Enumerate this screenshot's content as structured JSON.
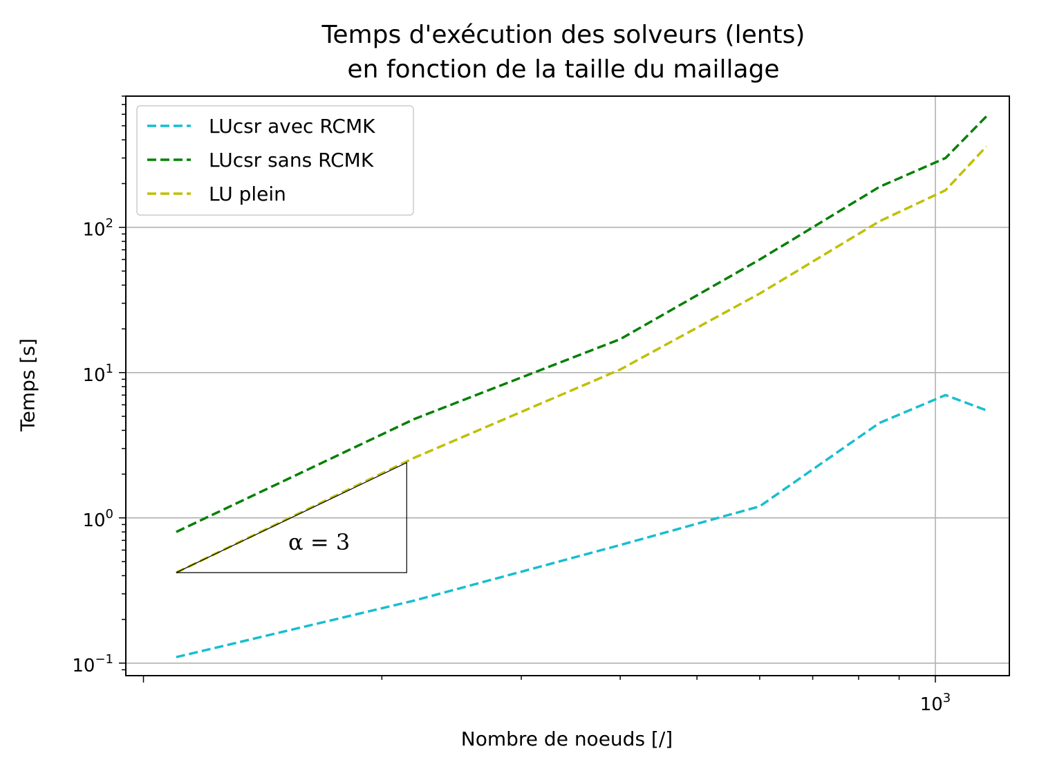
{
  "chart_data": {
    "type": "line",
    "title_line1": "Temps d'exécution des solveurs (lents)",
    "title_line2": "en fonction de la taille du maillage",
    "xlabel": "Nombre de noeuds [/]",
    "ylabel": "Temps [s]",
    "xscale": "log",
    "yscale": "log",
    "xlim": [
      95,
      1240
    ],
    "ylim": [
      0.082,
      800
    ],
    "grid": "major",
    "legend_location": "upper left",
    "x_tick_labels": [
      {
        "value": 1000,
        "base": "10",
        "exp": "3"
      }
    ],
    "y_tick_labels": [
      {
        "value": 0.1,
        "base": "10",
        "exp": "−1"
      },
      {
        "value": 1,
        "base": "10",
        "exp": "0"
      },
      {
        "value": 10,
        "base": "10",
        "exp": "1"
      },
      {
        "value": 100,
        "base": "10",
        "exp": "2"
      }
    ],
    "x": [
      110,
      220,
      400,
      600,
      850,
      1030,
      1160
    ],
    "series": [
      {
        "name": "LUcsr avec RCMK",
        "color": "#17becf",
        "style": "dashed",
        "values": [
          0.11,
          0.27,
          0.65,
          1.2,
          4.5,
          7.0,
          5.5
        ]
      },
      {
        "name": "LUcsr sans RCMK",
        "color": "#008000",
        "style": "dashed",
        "values": [
          0.8,
          4.8,
          17,
          60,
          190,
          300,
          580
        ]
      },
      {
        "name": "LU plein",
        "color": "#bfbf00",
        "style": "dashed",
        "values": [
          0.42,
          2.6,
          10.5,
          35,
          110,
          180,
          360
        ]
      }
    ],
    "annotation": {
      "text": "α = 3",
      "triangle_x": [
        110,
        215
      ],
      "triangle_y": [
        0.42,
        2.4
      ]
    }
  }
}
